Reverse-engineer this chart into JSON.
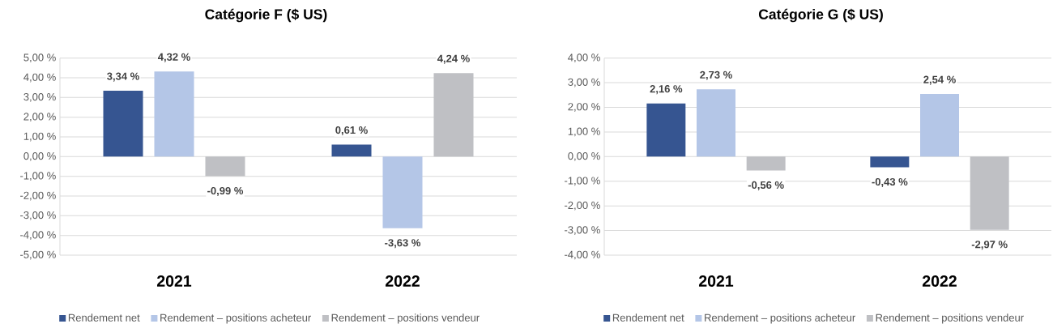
{
  "chart_data": [
    {
      "type": "bar",
      "title": "Catégorie F ($ US)",
      "categories": [
        "2021",
        "2022"
      ],
      "series": [
        {
          "name": "Rendement net",
          "color": "#365591",
          "values": [
            3.34,
            0.61
          ],
          "value_labels": [
            "3,34 %",
            "0,61 %"
          ]
        },
        {
          "name": "Rendement – positions acheteur",
          "color": "#b4c6e7",
          "values": [
            4.32,
            -3.63
          ],
          "value_labels": [
            "4,32 %",
            "-3,63 %"
          ]
        },
        {
          "name": "Rendement – positions vendeur",
          "color": "#bfc0c4",
          "values": [
            -0.99,
            4.24
          ],
          "value_labels": [
            "-0,99 %",
            "4,24 %"
          ]
        }
      ],
      "ylim": [
        -5,
        5
      ],
      "yticks": [
        {
          "value": -5,
          "label": "-5,00 %"
        },
        {
          "value": -4,
          "label": "-4,00 %"
        },
        {
          "value": -3,
          "label": "-3,00 %"
        },
        {
          "value": -2,
          "label": "-2,00 %"
        },
        {
          "value": -1,
          "label": "-1,00 %"
        },
        {
          "value": 0,
          "label": "0,00 %"
        },
        {
          "value": 1,
          "label": "1,00 %"
        },
        {
          "value": 2,
          "label": "2,00 %"
        },
        {
          "value": 3,
          "label": "3,00 %"
        },
        {
          "value": 4,
          "label": "4,00 %"
        },
        {
          "value": 5,
          "label": "5,00 %"
        }
      ],
      "grid": "y",
      "legend": "bottom"
    },
    {
      "type": "bar",
      "title": "Catégorie G ($ US)",
      "categories": [
        "2021",
        "2022"
      ],
      "series": [
        {
          "name": "Rendement net",
          "color": "#365591",
          "values": [
            2.16,
            -0.43
          ],
          "value_labels": [
            "2,16 %",
            "-0,43 %"
          ]
        },
        {
          "name": "Rendement – positions acheteur",
          "color": "#b4c6e7",
          "values": [
            2.73,
            2.54
          ],
          "value_labels": [
            "2,73 %",
            "2,54 %"
          ]
        },
        {
          "name": "Rendement – positions vendeur",
          "color": "#bfc0c4",
          "values": [
            -0.56,
            -2.97
          ],
          "value_labels": [
            "-0,56 %",
            "-2,97 %"
          ]
        }
      ],
      "ylim": [
        -4,
        4
      ],
      "yticks": [
        {
          "value": -4,
          "label": "-4,00 %"
        },
        {
          "value": -3,
          "label": "-3,00 %"
        },
        {
          "value": -2,
          "label": "-2,00 %"
        },
        {
          "value": -1,
          "label": "-1,00 %"
        },
        {
          "value": 0,
          "label": "0,00 %"
        },
        {
          "value": 1,
          "label": "1,00 %"
        },
        {
          "value": 2,
          "label": "2,00 %"
        },
        {
          "value": 3,
          "label": "3,00 %"
        },
        {
          "value": 4,
          "label": "4,00 %"
        }
      ],
      "grid": "y",
      "legend": "bottom"
    }
  ]
}
